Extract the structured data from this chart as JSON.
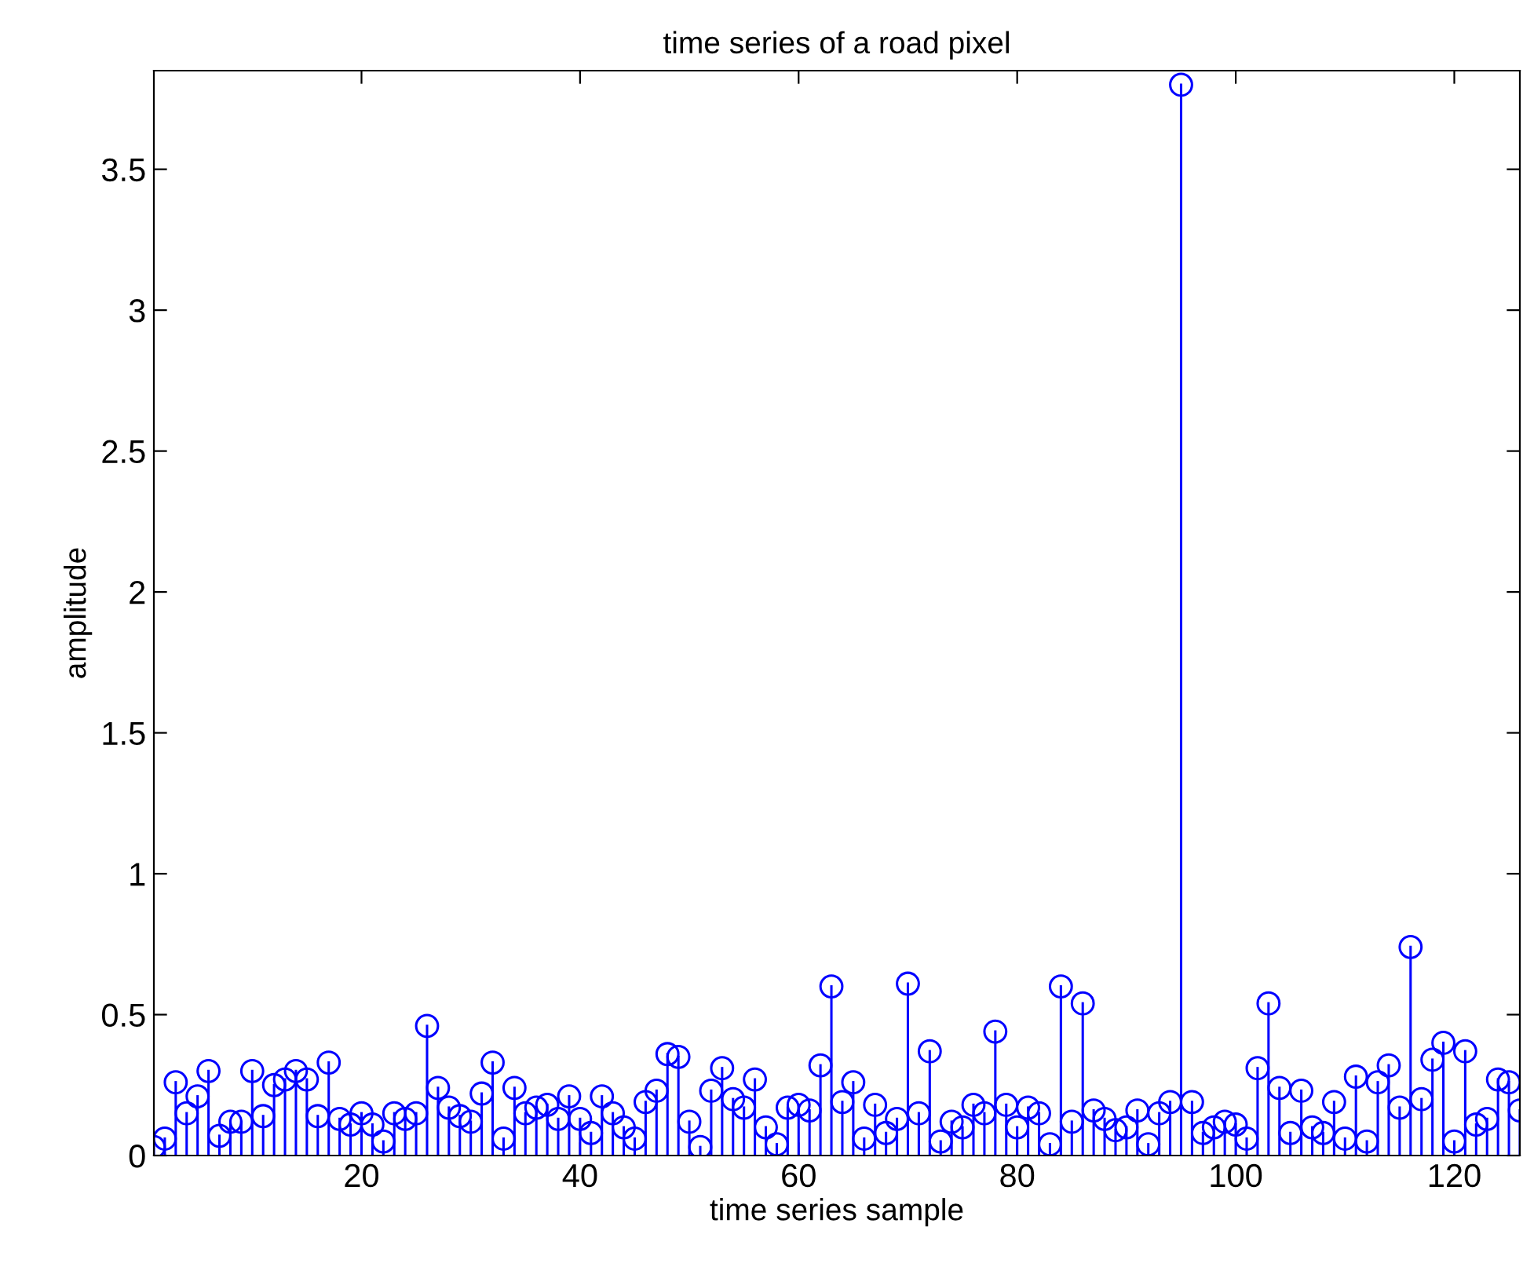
{
  "chart_data": {
    "type": "lollipop",
    "title": "time series of a road pixel",
    "xlabel": "time series sample",
    "ylabel": "amplitude",
    "x": [
      1,
      2,
      3,
      4,
      5,
      6,
      7,
      8,
      9,
      10,
      11,
      12,
      13,
      14,
      15,
      16,
      17,
      18,
      19,
      20,
      21,
      22,
      23,
      24,
      25,
      26,
      27,
      28,
      29,
      30,
      31,
      32,
      33,
      34,
      35,
      36,
      37,
      38,
      39,
      40,
      41,
      42,
      43,
      44,
      45,
      46,
      47,
      48,
      49,
      50,
      51,
      52,
      53,
      54,
      55,
      56,
      57,
      58,
      59,
      60,
      61,
      62,
      63,
      64,
      65,
      66,
      67,
      68,
      69,
      70,
      71,
      72,
      73,
      74,
      75,
      76,
      77,
      78,
      79,
      80,
      81,
      82,
      83,
      84,
      85,
      86,
      87,
      88,
      89,
      90,
      91,
      92,
      93,
      94,
      95,
      96,
      97,
      98,
      99,
      100,
      101,
      102,
      103,
      104,
      105,
      106,
      107,
      108,
      109,
      110,
      111,
      112,
      113,
      114,
      115,
      116,
      117,
      118,
      119,
      120,
      121,
      122,
      123,
      124,
      125,
      126
    ],
    "series": [
      {
        "color": "#0000ff",
        "values": [
          0.03,
          0.06,
          0.26,
          0.15,
          0.21,
          0.3,
          0.07,
          0.12,
          0.12,
          0.3,
          0.14,
          0.25,
          0.27,
          0.3,
          0.27,
          0.14,
          0.33,
          0.13,
          0.11,
          0.15,
          0.11,
          0.05,
          0.15,
          0.13,
          0.15,
          0.46,
          0.24,
          0.17,
          0.14,
          0.12,
          0.22,
          0.33,
          0.06,
          0.24,
          0.15,
          0.17,
          0.18,
          0.13,
          0.21,
          0.13,
          0.08,
          0.21,
          0.15,
          0.1,
          0.06,
          0.19,
          0.23,
          0.36,
          0.35,
          0.12,
          0.03,
          0.23,
          0.31,
          0.2,
          0.17,
          0.27,
          0.1,
          0.04,
          0.17,
          0.18,
          0.16,
          0.32,
          0.6,
          0.19,
          0.26,
          0.06,
          0.18,
          0.08,
          0.13,
          0.61,
          0.15,
          0.37,
          0.05,
          0.12,
          0.1,
          0.18,
          0.15,
          0.44,
          0.18,
          0.1,
          0.17,
          0.15,
          0.04,
          0.6,
          0.12,
          0.54,
          0.16,
          0.13,
          0.09,
          0.1,
          0.16,
          0.04,
          0.15,
          0.19,
          3.8,
          0.19,
          0.08,
          0.1,
          0.12,
          0.11,
          0.06,
          0.31,
          0.54,
          0.24,
          0.08,
          0.23,
          0.1,
          0.08,
          0.19,
          0.06,
          0.28,
          0.05,
          0.26,
          0.32,
          0.17,
          0.74,
          0.2,
          0.34,
          0.4,
          0.05,
          0.37,
          0.11,
          0.13,
          0.27,
          0.26,
          0.16
        ]
      }
    ],
    "xlim": [
      1,
      126
    ],
    "xticks": [
      20,
      40,
      60,
      80,
      100,
      120
    ],
    "ylim": [
      0,
      3.85
    ],
    "yticks": [
      0,
      0.5,
      1,
      1.5,
      2,
      2.5,
      3,
      3.5
    ],
    "marker": "circle",
    "grid": false
  }
}
